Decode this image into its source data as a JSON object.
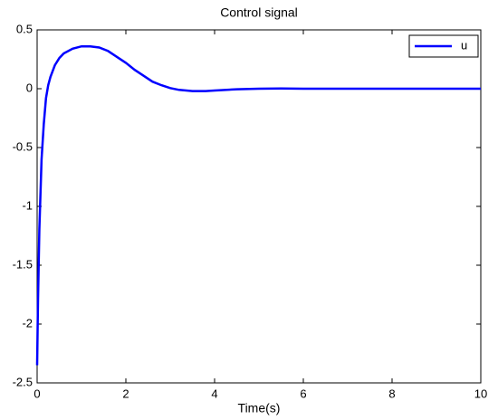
{
  "chart_data": {
    "type": "line",
    "title": "Control signal",
    "x_label": "Time(s)",
    "x": [
      0,
      0.02,
      0.05,
      0.1,
      0.15,
      0.2,
      0.25,
      0.3,
      0.4,
      0.5,
      0.6,
      0.8,
      1.0,
      1.2,
      1.4,
      1.6,
      1.8,
      2.0,
      2.2,
      2.4,
      2.6,
      2.8,
      3.0,
      3.2,
      3.5,
      3.8,
      4.0,
      4.5,
      5,
      5.5,
      6,
      7,
      8,
      9,
      10
    ],
    "series": [
      {
        "name": "u",
        "color": "#0000ff",
        "values": [
          -2.35,
          -1.8,
          -1.2,
          -0.6,
          -0.3,
          -0.08,
          0.03,
          0.1,
          0.2,
          0.26,
          0.3,
          0.34,
          0.36,
          0.36,
          0.35,
          0.32,
          0.27,
          0.22,
          0.16,
          0.11,
          0.06,
          0.03,
          0.005,
          -0.01,
          -0.02,
          -0.02,
          -0.015,
          -0.005,
          0,
          0.002,
          0,
          0,
          0,
          0,
          0
        ]
      }
    ],
    "xlim": [
      0,
      10
    ],
    "ylim": [
      -2.5,
      0.5
    ],
    "xticks": [
      0,
      2,
      4,
      6,
      8,
      10
    ],
    "yticks": [
      -2.5,
      -2,
      -1.5,
      -1,
      -0.5,
      0,
      0.5
    ],
    "grid": false,
    "legend": "upper-right"
  }
}
